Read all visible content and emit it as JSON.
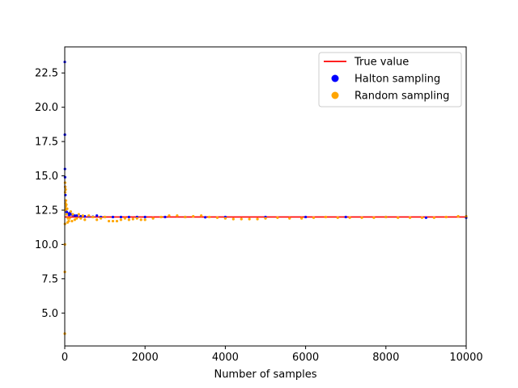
{
  "chart_data": {
    "type": "scatter",
    "title": "",
    "xlabel": "Number of samples",
    "ylabel": "",
    "xlim": [
      0,
      10000
    ],
    "ylim": [
      2.6,
      24.4
    ],
    "x_ticks": [
      0,
      2000,
      4000,
      6000,
      8000,
      10000
    ],
    "x_tick_labels": [
      "0",
      "2000",
      "4000",
      "6000",
      "8000",
      "10000"
    ],
    "y_ticks": [
      5.0,
      7.5,
      10.0,
      12.5,
      15.0,
      17.5,
      20.0,
      22.5
    ],
    "y_tick_labels": [
      "5.0",
      "7.5",
      "10.0",
      "12.5",
      "15.0",
      "17.5",
      "20.0",
      "22.5"
    ],
    "grid": false,
    "legend": {
      "placement": "upper-right",
      "entries": [
        {
          "label": "True value",
          "kind": "line",
          "color": "#ff0000"
        },
        {
          "label": "Halton sampling",
          "kind": "marker",
          "color": "#0000ff"
        },
        {
          "label": "Random sampling",
          "kind": "marker",
          "color": "#ffa500"
        }
      ]
    },
    "true_value": 12.0,
    "series": [
      {
        "name": "Halton sampling",
        "color": "#0000ff",
        "x": [
          1,
          3,
          5,
          8,
          12,
          16,
          20,
          25,
          30,
          40,
          50,
          60,
          75,
          90,
          110,
          130,
          150,
          200,
          250,
          300,
          400,
          500,
          600,
          700,
          800,
          900,
          1000,
          1200,
          1400,
          1600,
          1800,
          2000,
          2500,
          3000,
          3500,
          4000,
          5000,
          6000,
          7000,
          8000,
          9000,
          10000
        ],
        "y": [
          23.3,
          18.0,
          15.5,
          14.9,
          14.2,
          13.6,
          13.2,
          12.9,
          12.6,
          12.4,
          12.35,
          12.3,
          12.25,
          12.2,
          12.15,
          12.3,
          12.2,
          12.15,
          12.1,
          12.1,
          12.05,
          12.05,
          12.05,
          12.02,
          12.1,
          12.0,
          12.0,
          12.0,
          12.0,
          12.0,
          12.0,
          12.0,
          12.0,
          12.0,
          11.98,
          12.0,
          12.0,
          12.0,
          12.0,
          12.0,
          11.95,
          11.95
        ]
      },
      {
        "name": "Random sampling",
        "color": "#ffa500",
        "x": [
          1,
          2,
          4,
          6,
          8,
          10,
          12,
          15,
          18,
          22,
          26,
          30,
          35,
          40,
          50,
          60,
          70,
          80,
          100,
          120,
          150,
          180,
          200,
          250,
          300,
          350,
          400,
          450,
          500,
          600,
          700,
          800,
          900,
          1000,
          1100,
          1200,
          1300,
          1400,
          1500,
          1600,
          1700,
          1800,
          1900,
          2000,
          2200,
          2400,
          2600,
          2800,
          3000,
          3200,
          3400,
          3600,
          3800,
          4000,
          4200,
          4400,
          4600,
          4800,
          5000,
          5300,
          5600,
          5900,
          6200,
          6500,
          6800,
          7100,
          7400,
          7700,
          8000,
          8300,
          8600,
          8900,
          9200,
          9500,
          9800,
          10000
        ],
        "y": [
          3.5,
          8.0,
          10.0,
          11.5,
          14.5,
          13.8,
          14.2,
          12.5,
          13.0,
          14.0,
          12.8,
          13.2,
          12.6,
          12.9,
          12.2,
          12.6,
          11.6,
          11.9,
          11.7,
          11.9,
          12.4,
          11.7,
          12.2,
          11.8,
          11.9,
          12.2,
          11.9,
          12.1,
          11.8,
          12.1,
          12.0,
          11.8,
          11.9,
          12.0,
          11.7,
          11.7,
          11.7,
          11.8,
          11.9,
          11.8,
          11.85,
          11.9,
          11.8,
          11.8,
          11.9,
          12.0,
          12.1,
          12.1,
          12.0,
          12.05,
          12.1,
          12.0,
          11.95,
          11.9,
          11.85,
          11.85,
          11.85,
          11.85,
          11.9,
          11.95,
          11.9,
          11.9,
          11.95,
          12.0,
          11.95,
          11.95,
          11.95,
          11.95,
          12.0,
          11.95,
          11.95,
          11.95,
          11.95,
          12.0,
          12.05,
          12.05
        ]
      }
    ]
  }
}
